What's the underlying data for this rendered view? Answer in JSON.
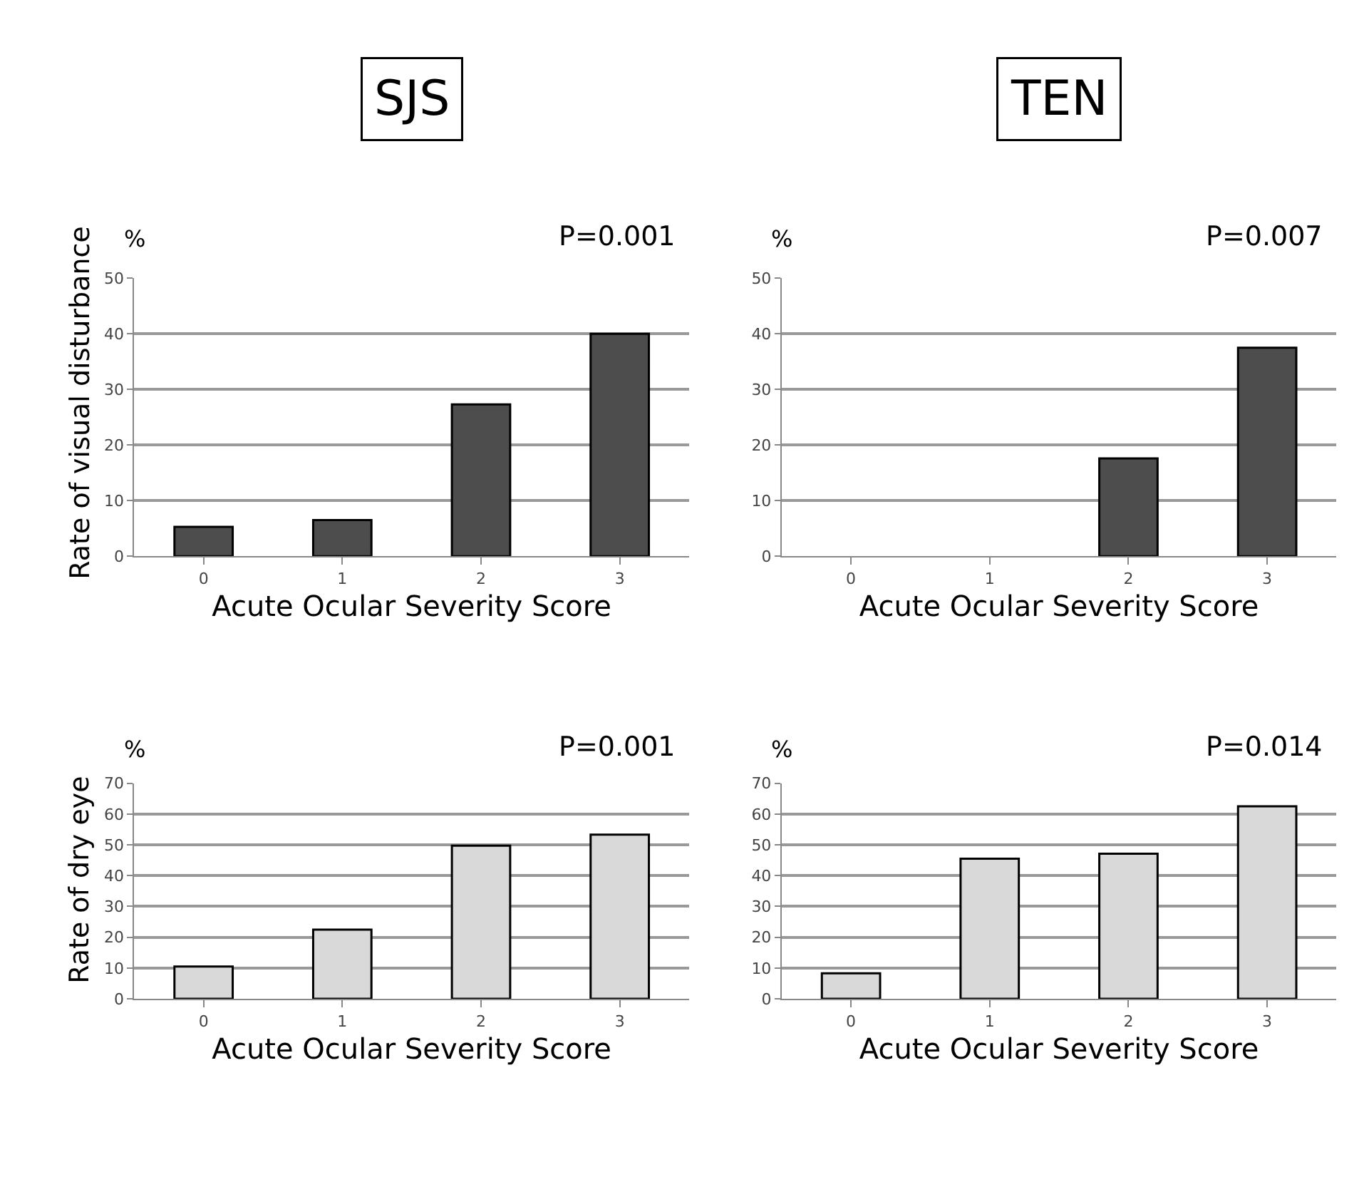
{
  "chart_data": [
    {
      "type": "bar",
      "title": "SJS",
      "ylabel": "Rate of visual disturbance",
      "xlabel": "Acute Ocular Severity Score",
      "categories": [
        "0",
        "1",
        "2",
        "3"
      ],
      "values": [
        5.3,
        6.5,
        27.3,
        40.0
      ],
      "color": "#4d4d4d",
      "ylim": [
        0,
        50
      ],
      "yticks": [
        0,
        10,
        20,
        30,
        40,
        50
      ],
      "grid": "y",
      "annotations": [
        "%",
        "P=0.001"
      ]
    },
    {
      "type": "bar",
      "title": "TEN",
      "xlabel": "Acute Ocular Severity Score",
      "categories": [
        "0",
        "1",
        "2",
        "3"
      ],
      "values": [
        0,
        0,
        17.6,
        37.5
      ],
      "color": "#4d4d4d",
      "ylim": [
        0,
        50
      ],
      "yticks": [
        0,
        10,
        20,
        30,
        40,
        50
      ],
      "grid": "y",
      "annotations": [
        "%",
        "P=0.007"
      ]
    },
    {
      "type": "bar",
      "ylabel": "Rate of dry eye",
      "xlabel": "Acute Ocular Severity Score",
      "categories": [
        "0",
        "1",
        "2",
        "3"
      ],
      "values": [
        10.5,
        22.5,
        49.7,
        53.3
      ],
      "color": "#d9d9d9",
      "ylim": [
        0,
        70
      ],
      "yticks": [
        0,
        10,
        20,
        30,
        40,
        50,
        60,
        70
      ],
      "grid": "y",
      "annotations": [
        "%",
        "P=0.001"
      ]
    },
    {
      "type": "bar",
      "xlabel": "Acute Ocular Severity Score",
      "categories": [
        "0",
        "1",
        "2",
        "3"
      ],
      "values": [
        8.3,
        45.5,
        47.1,
        62.5
      ],
      "color": "#d9d9d9",
      "ylim": [
        0,
        70
      ],
      "yticks": [
        0,
        10,
        20,
        30,
        40,
        50,
        60,
        70
      ],
      "grid": "y",
      "annotations": [
        "%",
        "P=0.014"
      ]
    }
  ]
}
